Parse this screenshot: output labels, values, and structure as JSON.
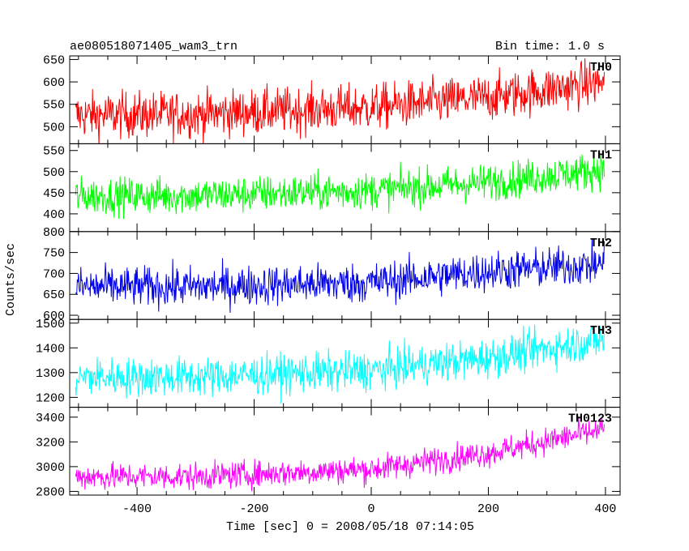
{
  "chart_data": {
    "type": "line",
    "title_left": "ae080518071405_wam3_trn",
    "title_right": "Bin time: 1.0 s",
    "xlabel": "Time [sec] 0 = 2008/05/18 07:14:05",
    "ylabel": "Counts/sec",
    "xlim": [
      -515,
      425
    ],
    "x_ticks": [
      -400,
      -200,
      0,
      200,
      400
    ],
    "bin_time_s": 1.0,
    "x_start": -505,
    "x_end": 398,
    "panels": [
      {
        "name": "TH0",
        "color": "#ff0000",
        "ylim": [
          462,
          658
        ],
        "y_ticks": [
          500,
          550,
          600,
          650
        ],
        "trend": [
          [
            -505,
            525
          ],
          [
            -300,
            528
          ],
          [
            0,
            543
          ],
          [
            200,
            565
          ],
          [
            398,
            600
          ]
        ],
        "noise": 26
      },
      {
        "name": "TH1",
        "color": "#00ff00",
        "ylim": [
          358,
          566
        ],
        "y_ticks": [
          400,
          450,
          500,
          550
        ],
        "trend": [
          [
            -505,
            442
          ],
          [
            -300,
            443
          ],
          [
            0,
            455
          ],
          [
            200,
            475
          ],
          [
            398,
            505
          ]
        ],
        "noise": 22
      },
      {
        "name": "TH2",
        "color": "#0000ee",
        "ylim": [
          590,
          800
        ],
        "y_ticks": [
          600,
          650,
          700,
          750,
          800
        ],
        "trend": [
          [
            -505,
            668
          ],
          [
            -300,
            668
          ],
          [
            0,
            678
          ],
          [
            200,
            705
          ],
          [
            398,
            722
          ]
        ],
        "noise": 24
      },
      {
        "name": "TH3",
        "color": "#00ffff",
        "ylim": [
          1160,
          1515
        ],
        "y_ticks": [
          1200,
          1300,
          1400,
          1500
        ],
        "trend": [
          [
            -505,
            1282
          ],
          [
            -300,
            1282
          ],
          [
            0,
            1308
          ],
          [
            200,
            1360
          ],
          [
            398,
            1435
          ]
        ],
        "noise": 40
      },
      {
        "name": "TH0123",
        "color": "#ff00ff",
        "ylim": [
          2770,
          3480
        ],
        "y_ticks": [
          2800,
          3000,
          3200,
          3400
        ],
        "trend": [
          [
            -505,
            2920
          ],
          [
            -300,
            2920
          ],
          [
            0,
            2980
          ],
          [
            200,
            3110
          ],
          [
            398,
            3300
          ]
        ],
        "noise": 55
      }
    ]
  }
}
